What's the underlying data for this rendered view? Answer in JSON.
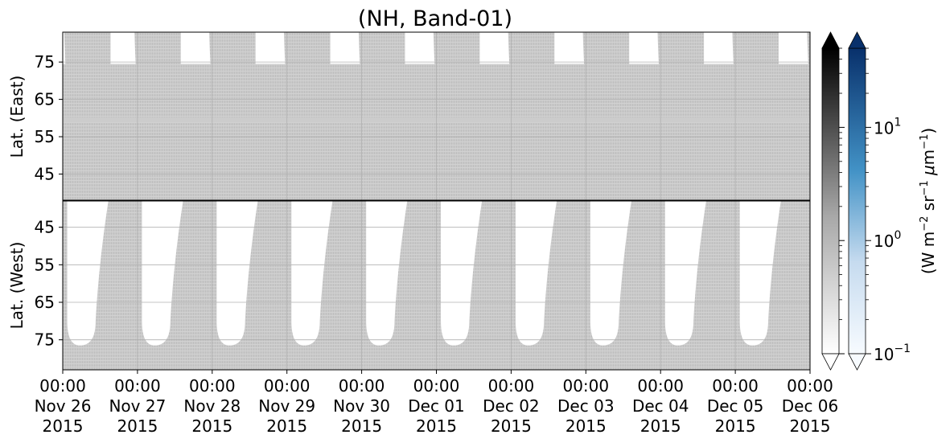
{
  "chart_data": {
    "type": "heatmap",
    "title": "(NH, Band-01)",
    "panels": [
      {
        "name": "east",
        "ylabel": "Lat. (East)",
        "yticks": [
          45,
          55,
          65,
          75
        ],
        "ylim": [
          38,
          83
        ],
        "y_inverted": false
      },
      {
        "name": "west",
        "ylabel": "Lat. (West)",
        "yticks": [
          75,
          65,
          55,
          45
        ],
        "ylim": [
          38,
          83
        ],
        "y_inverted": true
      }
    ],
    "xlim": [
      "2015-11-26 00:00",
      "2015-12-06 00:00"
    ],
    "xticks": [
      {
        "time": "00:00",
        "date": "Nov 26",
        "year": "2015"
      },
      {
        "time": "00:00",
        "date": "Nov 27",
        "year": "2015"
      },
      {
        "time": "00:00",
        "date": "Nov 28",
        "year": "2015"
      },
      {
        "time": "00:00",
        "date": "Nov 29",
        "year": "2015"
      },
      {
        "time": "00:00",
        "date": "Nov 30",
        "year": "2015"
      },
      {
        "time": "00:00",
        "date": "Dec 01",
        "year": "2015"
      },
      {
        "time": "00:00",
        "date": "Dec 02",
        "year": "2015"
      },
      {
        "time": "00:00",
        "date": "Dec 03",
        "year": "2015"
      },
      {
        "time": "00:00",
        "date": "Dec 04",
        "year": "2015"
      },
      {
        "time": "00:00",
        "date": "Dec 05",
        "year": "2015"
      },
      {
        "time": "00:00",
        "date": "Dec 06",
        "year": "2015"
      }
    ],
    "grid": true,
    "swath_fill_color": "#c8c8c8",
    "daily_swath_edges_days": [
      0.98,
      1.98,
      2.98,
      3.98,
      4.98,
      5.98,
      6.98,
      7.98,
      8.98,
      9.98
    ],
    "colorbars": [
      {
        "name": "gray",
        "colors": [
          "#ffffff",
          "#000000"
        ],
        "extend": "both"
      },
      {
        "name": "blue",
        "colors": [
          "#f7fbff",
          "#08306b"
        ],
        "extend": "both"
      }
    ],
    "colorbar_scale": "log",
    "colorbar_range": [
      0.1,
      50
    ],
    "colorbar_ticks": [
      {
        "base": "10",
        "exp": "−1"
      },
      {
        "base": "10",
        "exp": "0"
      },
      {
        "base": "10",
        "exp": "1"
      }
    ],
    "colorbar_label": {
      "open": "(W m",
      "e1": "−2",
      "mid1": " sr",
      "e2": "−1",
      "mu": " μ",
      "unit": "m",
      "e3": "−1",
      "close": ")"
    }
  }
}
